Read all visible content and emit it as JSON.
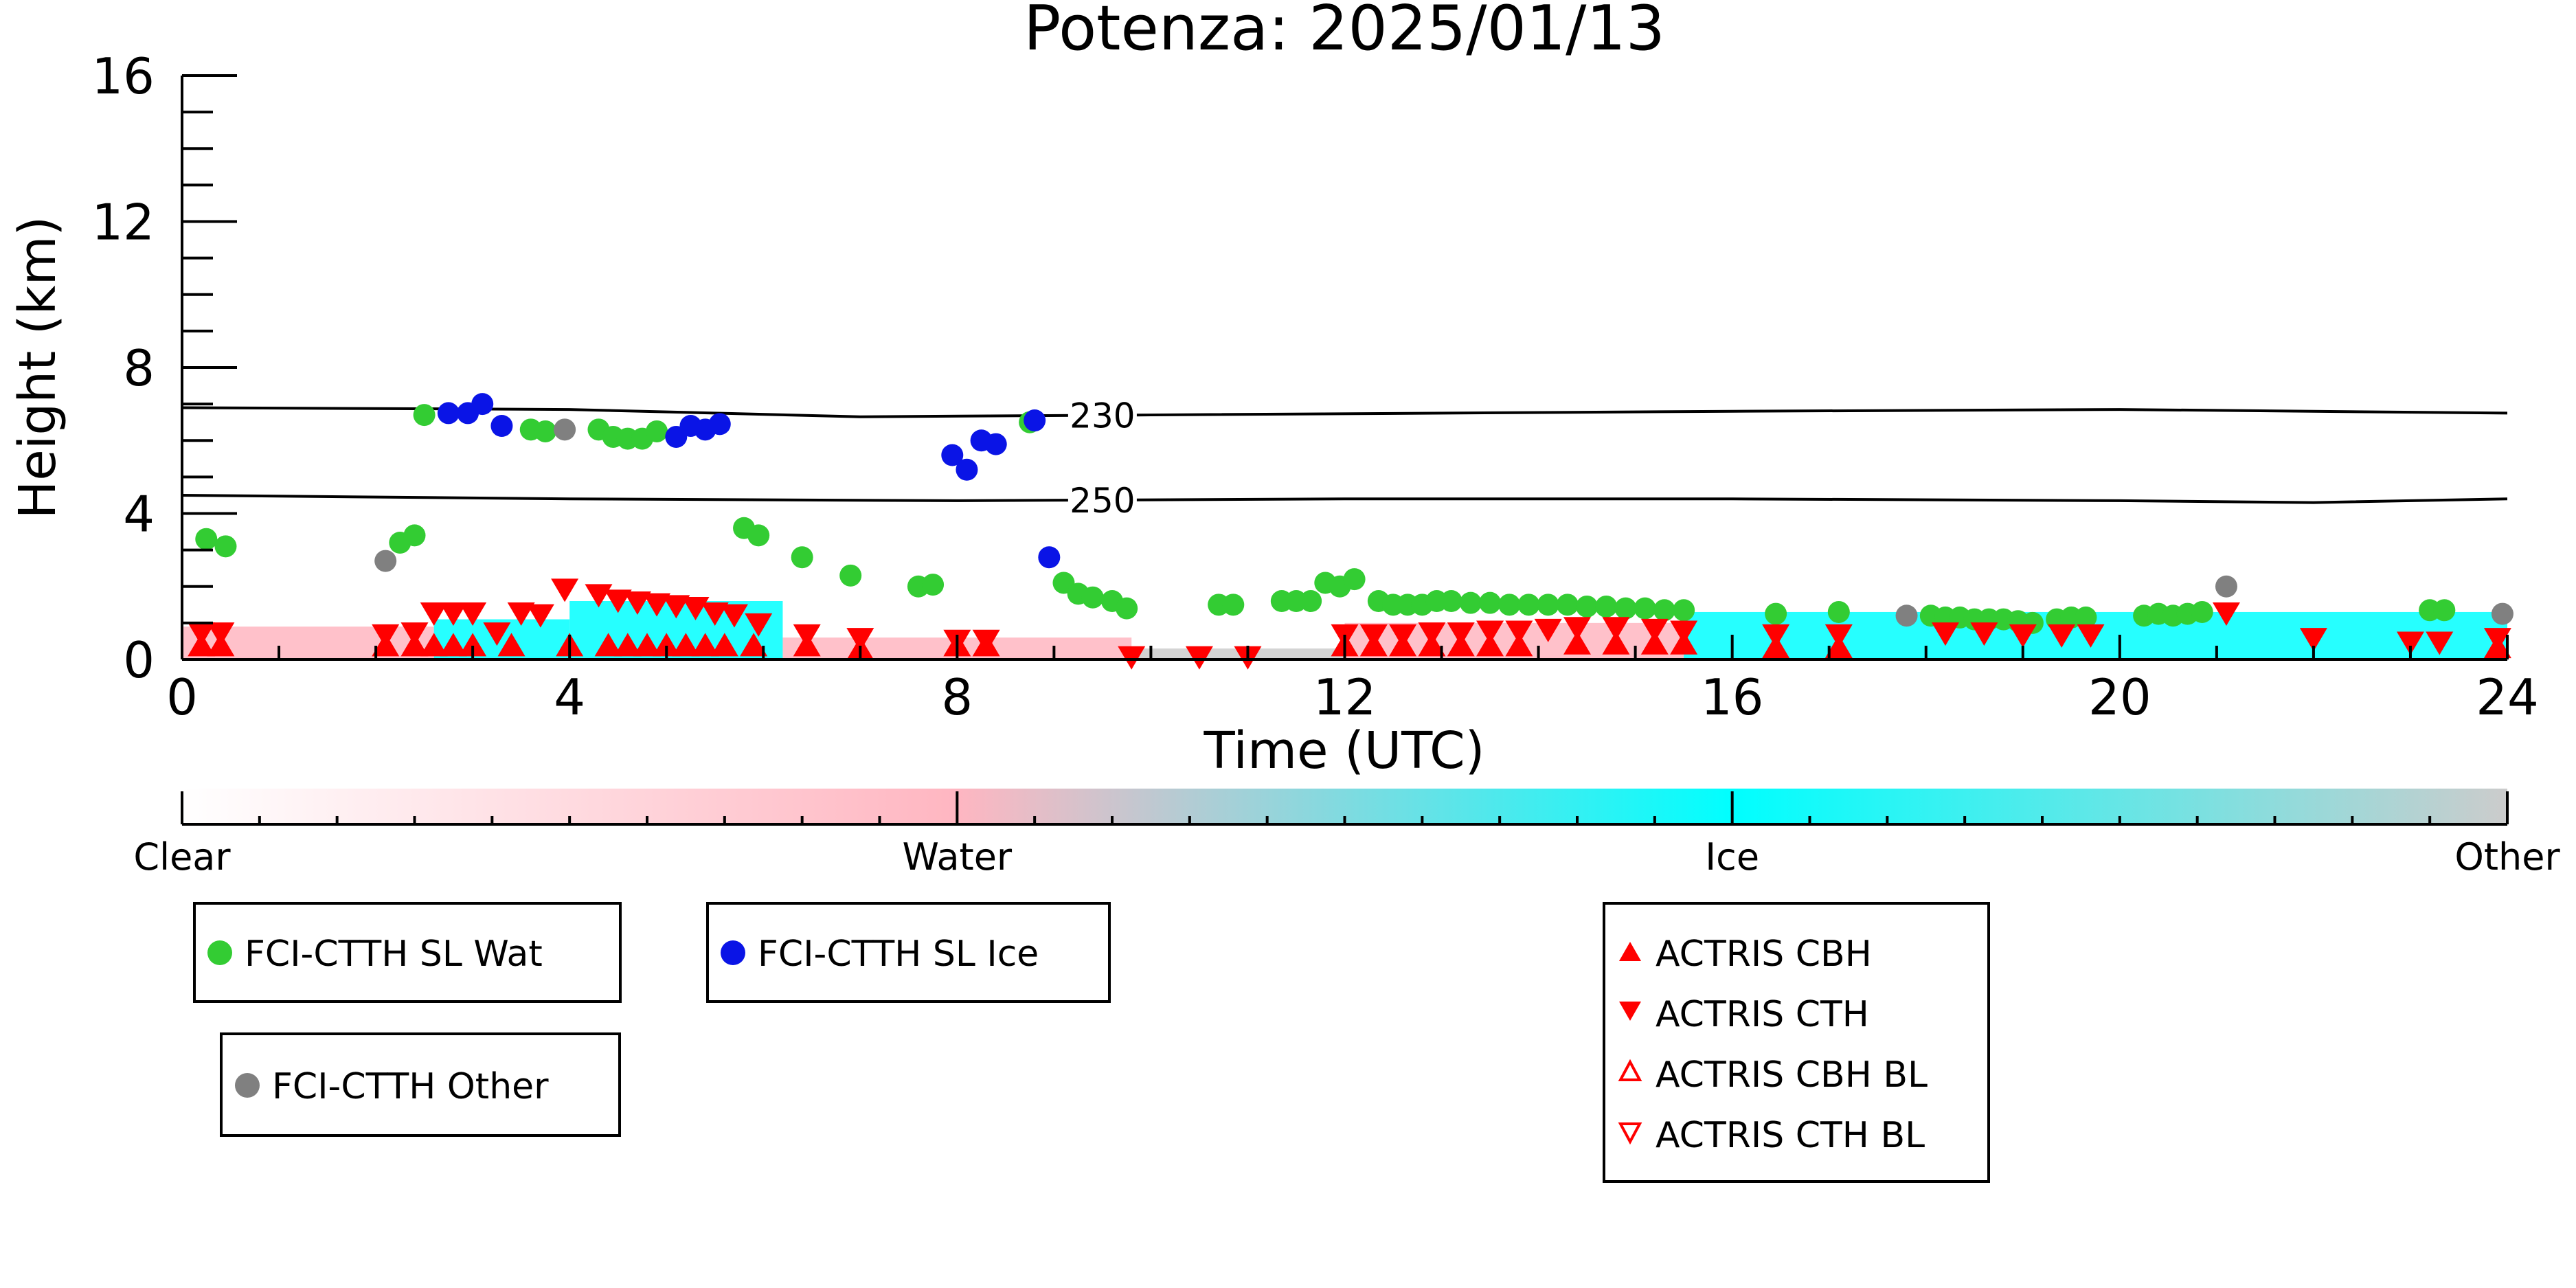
{
  "chart_data": {
    "type": "scatter",
    "title": "Potenza: 2025/01/13",
    "xlabel": "Time (UTC)",
    "ylabel": "Height (km)",
    "xlim": [
      0,
      24
    ],
    "ylim": [
      0,
      16
    ],
    "xticks": [
      "0",
      "4",
      "8",
      "12",
      "16",
      "20",
      "24"
    ],
    "yticks": [
      "0",
      "4",
      "8",
      "12",
      "16"
    ],
    "grid": false,
    "contours": [
      {
        "label": "230",
        "label_x": 9.5,
        "points": [
          [
            0,
            6.9
          ],
          [
            4,
            6.85
          ],
          [
            7,
            6.65
          ],
          [
            10,
            6.7
          ],
          [
            16,
            6.8
          ],
          [
            20,
            6.85
          ],
          [
            24,
            6.75
          ]
        ]
      },
      {
        "label": "250",
        "label_x": 9.5,
        "points": [
          [
            0,
            4.5
          ],
          [
            4,
            4.4
          ],
          [
            8,
            4.35
          ],
          [
            12,
            4.4
          ],
          [
            16,
            4.4
          ],
          [
            20,
            4.35
          ],
          [
            22,
            4.3
          ],
          [
            24,
            4.4
          ]
        ]
      }
    ],
    "background_bands": [
      {
        "class": "Water",
        "x0": 0.0,
        "x1": 2.6,
        "top": 0.9
      },
      {
        "class": "Ice",
        "x0": 2.6,
        "x1": 4.0,
        "top": 1.1
      },
      {
        "class": "Ice",
        "x0": 4.0,
        "x1": 6.2,
        "top": 1.6
      },
      {
        "class": "Water",
        "x0": 6.2,
        "x1": 9.8,
        "top": 0.6
      },
      {
        "class": "Other",
        "x0": 9.8,
        "x1": 12.0,
        "top": 0.3
      },
      {
        "class": "Water",
        "x0": 12.0,
        "x1": 15.5,
        "top": 1.0
      },
      {
        "class": "Ice",
        "x0": 15.5,
        "x1": 24.0,
        "top": 1.3
      }
    ],
    "colorbar": {
      "labels": [
        "Clear",
        "Water",
        "Ice",
        "Other"
      ],
      "colors": [
        "#ffffff",
        "#ffb6c1",
        "#00ffff",
        "#cccccc"
      ]
    },
    "series": [
      {
        "name": "FCI-CTTH SL Wat",
        "marker": "circle",
        "color": "#33cc33",
        "points": [
          [
            0.25,
            3.3
          ],
          [
            0.45,
            3.1
          ],
          [
            2.25,
            3.2
          ],
          [
            2.4,
            3.4
          ],
          [
            2.5,
            6.7
          ],
          [
            3.6,
            6.3
          ],
          [
            3.75,
            6.25
          ],
          [
            4.3,
            6.3
          ],
          [
            4.45,
            6.1
          ],
          [
            4.6,
            6.05
          ],
          [
            4.75,
            6.05
          ],
          [
            4.9,
            6.25
          ],
          [
            5.8,
            3.6
          ],
          [
            5.95,
            3.4
          ],
          [
            6.4,
            2.8
          ],
          [
            6.9,
            2.3
          ],
          [
            7.6,
            2.0
          ],
          [
            7.75,
            2.05
          ],
          [
            8.75,
            6.5
          ],
          [
            9.1,
            2.1
          ],
          [
            9.25,
            1.8
          ],
          [
            9.4,
            1.7
          ],
          [
            9.6,
            1.6
          ],
          [
            9.75,
            1.4
          ],
          [
            10.7,
            1.5
          ],
          [
            10.85,
            1.5
          ],
          [
            11.35,
            1.6
          ],
          [
            11.5,
            1.6
          ],
          [
            11.65,
            1.6
          ],
          [
            11.8,
            2.1
          ],
          [
            11.95,
            2.0
          ],
          [
            12.1,
            2.2
          ],
          [
            12.35,
            1.6
          ],
          [
            12.5,
            1.5
          ],
          [
            12.65,
            1.5
          ],
          [
            12.8,
            1.5
          ],
          [
            12.95,
            1.6
          ],
          [
            13.1,
            1.6
          ],
          [
            13.3,
            1.55
          ],
          [
            13.5,
            1.55
          ],
          [
            13.7,
            1.5
          ],
          [
            13.9,
            1.5
          ],
          [
            14.1,
            1.5
          ],
          [
            14.3,
            1.5
          ],
          [
            14.5,
            1.45
          ],
          [
            14.7,
            1.45
          ],
          [
            14.9,
            1.4
          ],
          [
            15.1,
            1.4
          ],
          [
            15.3,
            1.35
          ],
          [
            15.5,
            1.35
          ],
          [
            16.45,
            1.25
          ],
          [
            17.1,
            1.3
          ],
          [
            18.05,
            1.2
          ],
          [
            18.2,
            1.15
          ],
          [
            18.35,
            1.15
          ],
          [
            18.5,
            1.1
          ],
          [
            18.65,
            1.1
          ],
          [
            18.8,
            1.1
          ],
          [
            18.95,
            1.05
          ],
          [
            19.1,
            1.0
          ],
          [
            19.35,
            1.1
          ],
          [
            19.5,
            1.15
          ],
          [
            19.65,
            1.15
          ],
          [
            20.25,
            1.2
          ],
          [
            20.4,
            1.25
          ],
          [
            20.55,
            1.2
          ],
          [
            20.7,
            1.25
          ],
          [
            20.85,
            1.3
          ],
          [
            23.2,
            1.35
          ],
          [
            23.35,
            1.35
          ]
        ]
      },
      {
        "name": "FCI-CTTH SL Ice",
        "marker": "circle",
        "color": "#0a14e6",
        "points": [
          [
            2.75,
            6.75
          ],
          [
            2.95,
            6.75
          ],
          [
            3.1,
            7.0
          ],
          [
            3.3,
            6.4
          ],
          [
            5.1,
            6.1
          ],
          [
            5.25,
            6.4
          ],
          [
            5.4,
            6.3
          ],
          [
            5.55,
            6.45
          ],
          [
            7.95,
            5.6
          ],
          [
            8.1,
            5.2
          ],
          [
            8.25,
            6.0
          ],
          [
            8.4,
            5.9
          ],
          [
            8.8,
            6.55
          ],
          [
            8.95,
            2.8
          ]
        ]
      },
      {
        "name": "FCI-CTTH Other",
        "marker": "circle",
        "color": "#808080",
        "points": [
          [
            2.1,
            2.7
          ],
          [
            3.95,
            6.3
          ],
          [
            17.8,
            1.2
          ],
          [
            21.1,
            2.0
          ],
          [
            23.95,
            1.25
          ]
        ]
      },
      {
        "name": "ACTRIS CBH",
        "marker": "triangle-up",
        "color": "#ff0000",
        "points": [
          [
            0.2,
            0.35
          ],
          [
            0.4,
            0.35
          ],
          [
            2.1,
            0.35
          ],
          [
            2.4,
            0.35
          ],
          [
            2.6,
            0.35
          ],
          [
            2.8,
            0.35
          ],
          [
            3.0,
            0.35
          ],
          [
            3.4,
            0.35
          ],
          [
            4.0,
            0.35
          ],
          [
            4.4,
            0.35
          ],
          [
            4.6,
            0.35
          ],
          [
            4.8,
            0.35
          ],
          [
            5.0,
            0.35
          ],
          [
            5.2,
            0.35
          ],
          [
            5.4,
            0.35
          ],
          [
            5.6,
            0.35
          ],
          [
            5.9,
            0.35
          ],
          [
            6.45,
            0.35
          ],
          [
            7.0,
            0.25
          ],
          [
            8.0,
            0.35
          ],
          [
            8.3,
            0.35
          ],
          [
            12.0,
            0.35
          ],
          [
            12.3,
            0.35
          ],
          [
            12.6,
            0.35
          ],
          [
            12.9,
            0.35
          ],
          [
            13.2,
            0.35
          ],
          [
            13.5,
            0.35
          ],
          [
            13.8,
            0.35
          ],
          [
            14.4,
            0.4
          ],
          [
            14.8,
            0.4
          ],
          [
            15.2,
            0.4
          ],
          [
            15.5,
            0.4
          ],
          [
            16.45,
            0.3
          ],
          [
            17.1,
            0.3
          ],
          [
            23.9,
            0.3
          ]
        ]
      },
      {
        "name": "ACTRIS CTH",
        "marker": "triangle-down",
        "color": "#ff0000",
        "points": [
          [
            0.2,
            0.75
          ],
          [
            0.4,
            0.75
          ],
          [
            2.1,
            0.7
          ],
          [
            2.4,
            0.75
          ],
          [
            2.6,
            1.3
          ],
          [
            2.8,
            1.3
          ],
          [
            3.0,
            1.3
          ],
          [
            3.25,
            0.75
          ],
          [
            3.5,
            1.3
          ],
          [
            3.7,
            1.25
          ],
          [
            3.95,
            1.95
          ],
          [
            4.3,
            1.8
          ],
          [
            4.5,
            1.65
          ],
          [
            4.7,
            1.6
          ],
          [
            4.9,
            1.55
          ],
          [
            5.1,
            1.5
          ],
          [
            5.3,
            1.45
          ],
          [
            5.5,
            1.3
          ],
          [
            5.7,
            1.25
          ],
          [
            5.95,
            1.0
          ],
          [
            6.45,
            0.7
          ],
          [
            7.0,
            0.6
          ],
          [
            8.0,
            0.55
          ],
          [
            8.3,
            0.55
          ],
          [
            9.8,
            0.1
          ],
          [
            10.5,
            0.1
          ],
          [
            11.0,
            0.1
          ],
          [
            12.0,
            0.7
          ],
          [
            12.3,
            0.7
          ],
          [
            12.6,
            0.7
          ],
          [
            12.9,
            0.75
          ],
          [
            13.2,
            0.75
          ],
          [
            13.5,
            0.8
          ],
          [
            13.8,
            0.8
          ],
          [
            14.1,
            0.85
          ],
          [
            14.4,
            0.9
          ],
          [
            14.8,
            0.9
          ],
          [
            15.2,
            0.85
          ],
          [
            15.5,
            0.8
          ],
          [
            16.45,
            0.7
          ],
          [
            17.1,
            0.7
          ],
          [
            18.2,
            0.75
          ],
          [
            18.6,
            0.75
          ],
          [
            19.0,
            0.7
          ],
          [
            19.4,
            0.7
          ],
          [
            19.7,
            0.7
          ],
          [
            21.1,
            1.3
          ],
          [
            22.0,
            0.6
          ],
          [
            23.0,
            0.5
          ],
          [
            23.3,
            0.5
          ],
          [
            23.9,
            0.6
          ]
        ]
      },
      {
        "name": "ACTRIS CBH BL",
        "marker": "triangle-up-open",
        "color": "#ff0000",
        "points": []
      },
      {
        "name": "ACTRIS CTH BL",
        "marker": "triangle-down-open",
        "color": "#ff0000",
        "points": []
      }
    ]
  }
}
